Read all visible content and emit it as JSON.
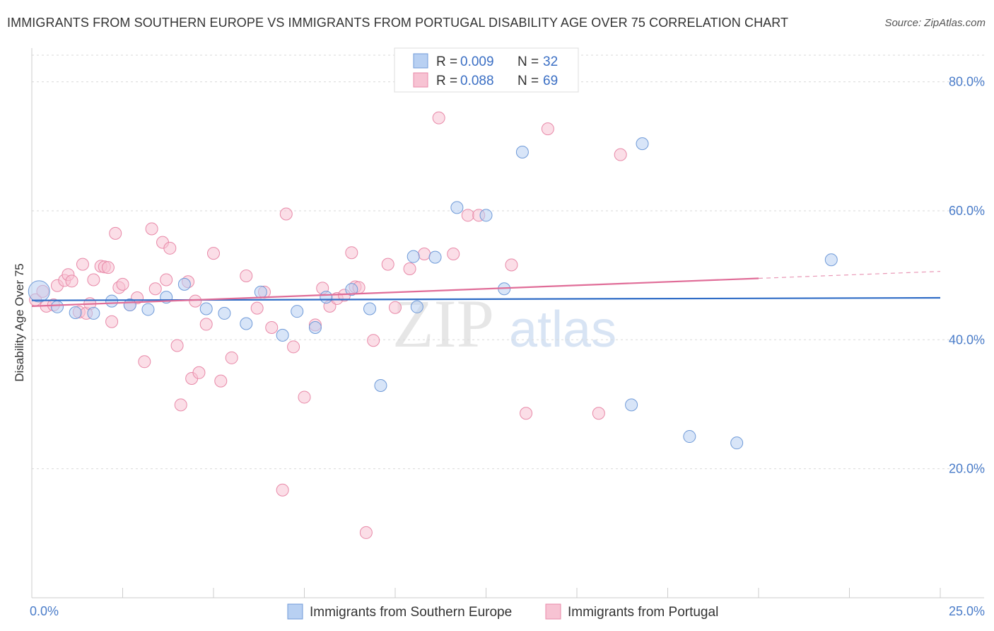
{
  "title": "IMMIGRANTS FROM SOUTHERN EUROPE VS IMMIGRANTS FROM PORTUGAL DISABILITY AGE OVER 75 CORRELATION CHART",
  "source": "Source: ZipAtlas.com",
  "watermark": {
    "zip": "ZIP",
    "atlas": "atlas"
  },
  "colors": {
    "blue_fill": "#b8d0f2",
    "blue_stroke": "#6f9ad8",
    "blue_line": "#2f6cc6",
    "pink_fill": "#f7c3d3",
    "pink_stroke": "#e889a8",
    "pink_line": "#e06d98",
    "grid": "#d9d9d9",
    "axis_text": "#4a7cc9"
  },
  "chart_data": {
    "type": "scatter",
    "xlabel": "",
    "ylabel": "Disability Age Over 75",
    "xlim": [
      0,
      25
    ],
    "ylim": [
      0,
      85
    ],
    "x_tick_labels": [
      {
        "value": 0,
        "label": "0.0%"
      },
      {
        "value": 25,
        "label": "25.0%"
      }
    ],
    "y_tick_labels": [
      {
        "value": 20,
        "label": "20.0%"
      },
      {
        "value": 40,
        "label": "40.0%"
      },
      {
        "value": 60,
        "label": "60.0%"
      },
      {
        "value": 80,
        "label": "80.0%"
      }
    ],
    "legend": [
      {
        "series": "blue",
        "r_label": "R =",
        "r_value": "0.009",
        "n_label": "N =",
        "n_value": "32"
      },
      {
        "series": "pink",
        "r_label": "R =",
        "r_value": "0.088",
        "n_label": "N =",
        "n_value": "69"
      }
    ],
    "series": [
      {
        "name": "Immigrants from Southern Europe",
        "key": "blue",
        "trend": {
          "x0": 0,
          "y0": 46.1,
          "x1": 25,
          "y1": 46.5,
          "solid_until": 25
        },
        "points": [
          {
            "x": 0.2,
            "y": 47.5,
            "big": true
          },
          {
            "x": 0.7,
            "y": 45.1
          },
          {
            "x": 1.2,
            "y": 44.2
          },
          {
            "x": 1.7,
            "y": 44.1
          },
          {
            "x": 2.2,
            "y": 46.0
          },
          {
            "x": 2.7,
            "y": 45.4
          },
          {
            "x": 3.2,
            "y": 44.7
          },
          {
            "x": 3.7,
            "y": 46.6
          },
          {
            "x": 4.2,
            "y": 48.6
          },
          {
            "x": 4.8,
            "y": 44.8
          },
          {
            "x": 5.3,
            "y": 44.1
          },
          {
            "x": 5.9,
            "y": 42.5
          },
          {
            "x": 6.3,
            "y": 47.4
          },
          {
            "x": 6.9,
            "y": 40.7
          },
          {
            "x": 7.3,
            "y": 44.4
          },
          {
            "x": 7.8,
            "y": 41.9
          },
          {
            "x": 8.1,
            "y": 46.6
          },
          {
            "x": 8.8,
            "y": 47.8
          },
          {
            "x": 9.3,
            "y": 44.8
          },
          {
            "x": 9.6,
            "y": 32.9
          },
          {
            "x": 10.5,
            "y": 52.9
          },
          {
            "x": 10.6,
            "y": 45.1
          },
          {
            "x": 11.1,
            "y": 52.8
          },
          {
            "x": 11.7,
            "y": 60.5
          },
          {
            "x": 12.5,
            "y": 59.3
          },
          {
            "x": 13.0,
            "y": 47.9
          },
          {
            "x": 13.5,
            "y": 69.1
          },
          {
            "x": 16.5,
            "y": 29.9
          },
          {
            "x": 16.8,
            "y": 70.4
          },
          {
            "x": 18.1,
            "y": 25.0
          },
          {
            "x": 19.4,
            "y": 24.0
          },
          {
            "x": 22.0,
            "y": 52.4
          }
        ]
      },
      {
        "name": "Immigrants from Portugal",
        "key": "pink",
        "trend": {
          "x0": 0,
          "y0": 45.2,
          "x1": 25,
          "y1": 50.6,
          "solid_until": 20
        },
        "points": [
          {
            "x": 0.1,
            "y": 46.2
          },
          {
            "x": 0.3,
            "y": 47.5
          },
          {
            "x": 0.4,
            "y": 45.2
          },
          {
            "x": 0.6,
            "y": 45.4
          },
          {
            "x": 0.7,
            "y": 48.4
          },
          {
            "x": 0.9,
            "y": 49.2
          },
          {
            "x": 1.0,
            "y": 50.1
          },
          {
            "x": 1.1,
            "y": 49.1
          },
          {
            "x": 1.3,
            "y": 44.3
          },
          {
            "x": 1.4,
            "y": 51.7
          },
          {
            "x": 1.5,
            "y": 44.1
          },
          {
            "x": 1.6,
            "y": 45.6
          },
          {
            "x": 1.7,
            "y": 49.3
          },
          {
            "x": 1.9,
            "y": 51.4
          },
          {
            "x": 2.0,
            "y": 51.3
          },
          {
            "x": 2.1,
            "y": 51.2
          },
          {
            "x": 2.2,
            "y": 42.8
          },
          {
            "x": 2.3,
            "y": 56.5
          },
          {
            "x": 2.4,
            "y": 48.1
          },
          {
            "x": 2.5,
            "y": 48.6
          },
          {
            "x": 2.7,
            "y": 45.4
          },
          {
            "x": 2.9,
            "y": 46.5
          },
          {
            "x": 3.1,
            "y": 36.6
          },
          {
            "x": 3.3,
            "y": 57.2
          },
          {
            "x": 3.4,
            "y": 47.9
          },
          {
            "x": 3.6,
            "y": 55.1
          },
          {
            "x": 3.7,
            "y": 49.3
          },
          {
            "x": 3.8,
            "y": 54.2
          },
          {
            "x": 4.0,
            "y": 39.1
          },
          {
            "x": 4.1,
            "y": 29.9
          },
          {
            "x": 4.3,
            "y": 49.0
          },
          {
            "x": 4.4,
            "y": 34.0
          },
          {
            "x": 4.6,
            "y": 34.9
          },
          {
            "x": 4.8,
            "y": 42.4
          },
          {
            "x": 5.0,
            "y": 53.4
          },
          {
            "x": 5.2,
            "y": 33.6
          },
          {
            "x": 5.5,
            "y": 37.2
          },
          {
            "x": 5.9,
            "y": 49.9
          },
          {
            "x": 6.2,
            "y": 44.9
          },
          {
            "x": 6.4,
            "y": 47.4
          },
          {
            "x": 6.6,
            "y": 41.9
          },
          {
            "x": 6.9,
            "y": 16.7
          },
          {
            "x": 7.0,
            "y": 59.5
          },
          {
            "x": 7.2,
            "y": 38.9
          },
          {
            "x": 7.5,
            "y": 31.1
          },
          {
            "x": 7.8,
            "y": 42.3
          },
          {
            "x": 8.0,
            "y": 48.0
          },
          {
            "x": 8.2,
            "y": 45.2
          },
          {
            "x": 8.4,
            "y": 46.4
          },
          {
            "x": 8.6,
            "y": 46.9
          },
          {
            "x": 8.8,
            "y": 53.5
          },
          {
            "x": 8.9,
            "y": 48.2
          },
          {
            "x": 9.0,
            "y": 48.1
          },
          {
            "x": 9.2,
            "y": 10.1
          },
          {
            "x": 9.4,
            "y": 39.9
          },
          {
            "x": 9.8,
            "y": 51.7
          },
          {
            "x": 10.0,
            "y": 45.0
          },
          {
            "x": 10.4,
            "y": 51.0
          },
          {
            "x": 10.8,
            "y": 53.3
          },
          {
            "x": 11.2,
            "y": 74.4
          },
          {
            "x": 11.6,
            "y": 53.3
          },
          {
            "x": 12.0,
            "y": 59.3
          },
          {
            "x": 13.2,
            "y": 51.6
          },
          {
            "x": 13.6,
            "y": 28.6
          },
          {
            "x": 14.2,
            "y": 72.7
          },
          {
            "x": 15.6,
            "y": 28.6
          },
          {
            "x": 16.2,
            "y": 68.7
          },
          {
            "x": 12.3,
            "y": 59.3
          },
          {
            "x": 4.5,
            "y": 46.0
          }
        ]
      }
    ]
  }
}
